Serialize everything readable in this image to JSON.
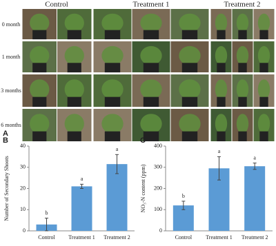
{
  "panel_a": {
    "label": "A",
    "columns": [
      "Control",
      "Treatment 1",
      "Treatment 2"
    ],
    "rows": [
      "0 month",
      "1 month",
      "3 months",
      "6 months"
    ]
  },
  "chart_data": [
    {
      "type": "bar",
      "label": "B",
      "ylabel": "Number of Secondary Shoots",
      "categories": [
        "Control",
        "Treatment 1",
        "Treatment 2"
      ],
      "values": [
        3,
        21,
        31.5
      ],
      "errors": [
        3,
        1,
        4.5
      ],
      "annotations": [
        "b",
        "a",
        "a"
      ],
      "color": "#5b9bd5",
      "ylim": [
        0,
        40
      ],
      "yticks": [
        0,
        10,
        20,
        30,
        40
      ]
    },
    {
      "type": "bar",
      "label": "C",
      "ylabel": "NO₃-N content (ppm)",
      "categories": [
        "Control",
        "Treatment 1",
        "Treatment 2"
      ],
      "values": [
        120,
        295,
        305
      ],
      "errors": [
        20,
        55,
        15
      ],
      "annotations": [
        "b",
        "a",
        "a"
      ],
      "color": "#5b9bd5",
      "ylim": [
        0,
        400
      ],
      "yticks": [
        0,
        100,
        200,
        300,
        400
      ]
    }
  ]
}
